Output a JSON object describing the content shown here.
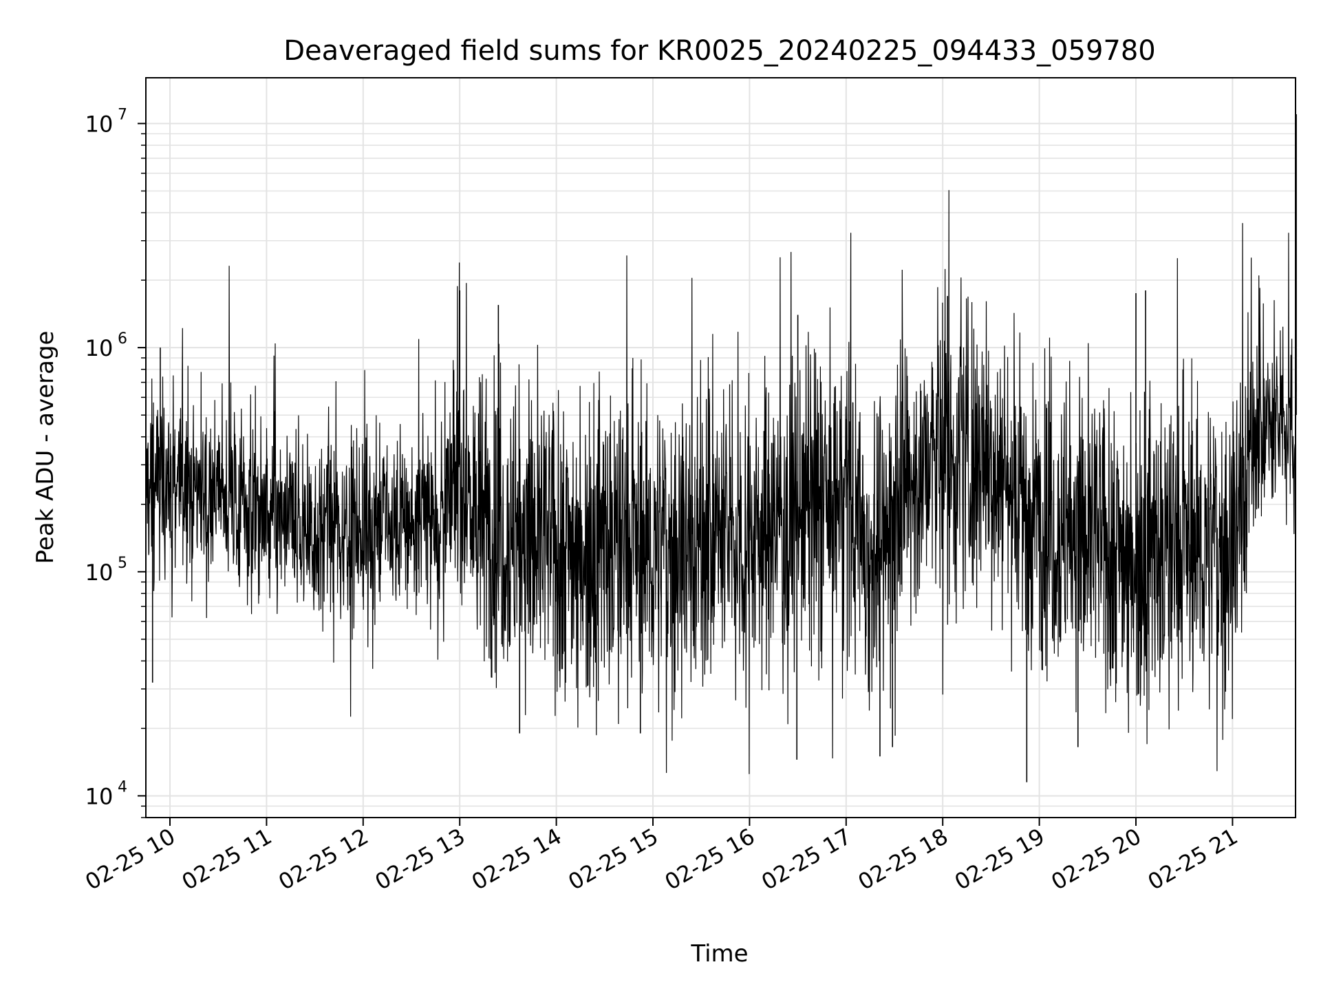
{
  "chart_data": {
    "type": "line",
    "title": "Deaveraged field sums for KR0025_20240225_094433_059780",
    "xlabel": "Time",
    "ylabel": "Peak ADU - average",
    "x_range": [
      "2024-02-25 09:44",
      "2024-02-25 21:40"
    ],
    "y_scale": "log",
    "ylim": [
      8000,
      16000000
    ],
    "grid": true,
    "line_color": "#000000",
    "grid_color": "#e3e3e3",
    "x_tick_labels": [
      "02-25 10",
      "02-25 11",
      "02-25 12",
      "02-25 13",
      "02-25 14",
      "02-25 15",
      "02-25 16",
      "02-25 17",
      "02-25 18",
      "02-25 19",
      "02-25 20",
      "02-25 21"
    ],
    "y_tick_labels": [
      {
        "base": "10",
        "exp": "4",
        "value": 10000
      },
      {
        "base": "10",
        "exp": "5",
        "value": 100000
      },
      {
        "base": "10",
        "exp": "6",
        "value": 1000000
      },
      {
        "base": "10",
        "exp": "7",
        "value": 10000000
      }
    ],
    "series": [
      {
        "x_hours": [
          9.75,
          10.0,
          10.5,
          11.0,
          11.5,
          12.0,
          12.5,
          12.9,
          13.0,
          13.2,
          13.5,
          14.0,
          14.5,
          15.0,
          15.5,
          16.0,
          16.5,
          17.0,
          17.3,
          17.5,
          18.0,
          18.3,
          18.5,
          19.0,
          19.5,
          20.0,
          20.5,
          21.0,
          21.2,
          21.5,
          21.66
        ],
        "typical_values": [
          250000,
          260000,
          230000,
          170000,
          150000,
          160000,
          165000,
          200000,
          300000,
          160000,
          150000,
          130000,
          140000,
          125000,
          135000,
          150000,
          180000,
          220000,
          110000,
          200000,
          350000,
          300000,
          320000,
          170000,
          140000,
          125000,
          130000,
          130000,
          400000,
          450000,
          500000
        ],
        "peaks": [
          {
            "x_hour": 9.9,
            "value": 1000000
          },
          {
            "x_hour": 13.0,
            "value": 1800000
          },
          {
            "x_hour": 13.4,
            "value": 1550000
          },
          {
            "x_hour": 16.5,
            "value": 1400000
          },
          {
            "x_hour": 18.05,
            "value": 1700000
          },
          {
            "x_hour": 20.0,
            "value": 1750000
          },
          {
            "x_hour": 20.1,
            "value": 1800000
          },
          {
            "x_hour": 21.66,
            "value": 11000000
          }
        ],
        "troughs": [
          {
            "x_hour": 9.82,
            "value": 32000
          },
          {
            "x_hour": 13.62,
            "value": 19000
          },
          {
            "x_hour": 14.87,
            "value": 19000
          },
          {
            "x_hour": 16.49,
            "value": 14500
          },
          {
            "x_hour": 17.35,
            "value": 15000
          },
          {
            "x_hour": 17.48,
            "value": 16500
          },
          {
            "x_hour": 18.87,
            "value": 11500
          },
          {
            "x_hour": 19.4,
            "value": 16500
          }
        ]
      }
    ]
  }
}
